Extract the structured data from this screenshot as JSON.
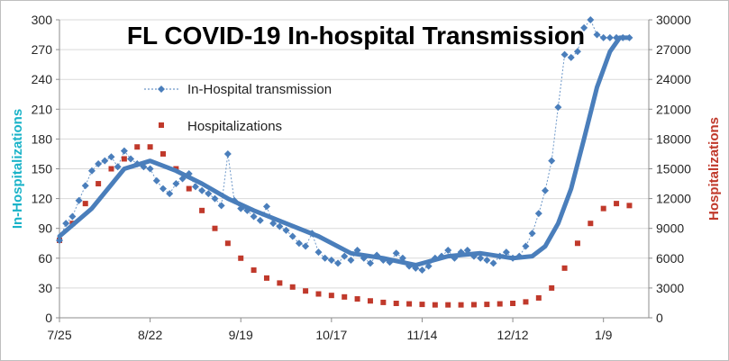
{
  "chart_data": {
    "type": "line",
    "title": "FL COVID-19 In-hospital Transmission",
    "x_tick_labels": [
      "7/25",
      "8/22",
      "9/19",
      "10/17",
      "11/14",
      "12/12",
      "1/9"
    ],
    "y_left": {
      "label": "In-Hospitalizations",
      "ticks": [
        "0",
        "30",
        "60",
        "90",
        "120",
        "150",
        "180",
        "210",
        "240",
        "270",
        "300"
      ],
      "range": [
        0,
        300
      ],
      "color": "#1ab3c8"
    },
    "y_right": {
      "label": "Hospitalizations",
      "ticks": [
        "0",
        "3000",
        "6000",
        "9000",
        "12000",
        "15000",
        "18000",
        "21000",
        "24000",
        "27000",
        "30000"
      ],
      "range": [
        0,
        30000
      ],
      "color": "#c0392b"
    },
    "legend_position": "upper-left, inside plot",
    "series": [
      {
        "name": "In-Hospital transmission",
        "axis": "left",
        "marker": "diamond",
        "color": "#4a7ebb",
        "x": [
          0,
          2,
          4,
          6,
          8,
          10,
          12,
          14,
          16,
          18,
          20,
          22,
          24,
          26,
          28,
          30,
          32,
          34,
          36,
          38,
          40,
          42,
          44,
          46,
          48,
          50,
          52,
          54,
          56,
          58,
          60,
          62,
          64,
          66,
          68,
          70,
          72,
          74,
          76,
          78,
          80,
          82,
          84,
          86,
          88,
          90,
          92,
          94,
          96,
          98,
          100,
          102,
          104,
          106,
          108,
          110,
          112,
          114,
          116,
          118,
          120,
          122,
          124,
          126,
          128,
          130,
          132,
          134,
          136,
          138,
          140,
          142,
          144,
          146,
          148,
          150,
          152,
          154,
          156,
          158,
          160,
          162,
          164,
          166,
          168,
          170,
          172,
          174,
          176
        ],
        "values": [
          78,
          95,
          102,
          118,
          133,
          148,
          155,
          158,
          162,
          152,
          168,
          160,
          155,
          152,
          150,
          138,
          130,
          125,
          135,
          140,
          145,
          132,
          128,
          125,
          120,
          113,
          165,
          118,
          110,
          108,
          102,
          98,
          112,
          95,
          92,
          88,
          82,
          75,
          72,
          85,
          66,
          60,
          58,
          55,
          62,
          58,
          68,
          60,
          55,
          63,
          58,
          56,
          65,
          60,
          52,
          50,
          48,
          52,
          60,
          62,
          68,
          60,
          66,
          68,
          62,
          60,
          58,
          55,
          62,
          66,
          60,
          62,
          72,
          85,
          105,
          128,
          158,
          212,
          265,
          262,
          268,
          292,
          300,
          285,
          282,
          282,
          282,
          282,
          282
        ],
        "trend_x": [
          0,
          10,
          20,
          28,
          36,
          44,
          52,
          60,
          70,
          80,
          90,
          100,
          110,
          120,
          130,
          140,
          146,
          150,
          154,
          158,
          162,
          166,
          170,
          173,
          176
        ],
        "trend": [
          82,
          110,
          150,
          158,
          148,
          135,
          120,
          108,
          95,
          82,
          65,
          60,
          53,
          62,
          65,
          60,
          62,
          72,
          95,
          130,
          180,
          232,
          268,
          282,
          282
        ]
      },
      {
        "name": "Hospitalizations",
        "axis": "right",
        "marker": "square",
        "color": "#c0392b",
        "x": [
          0,
          4,
          8,
          12,
          16,
          20,
          24,
          28,
          32,
          36,
          40,
          44,
          48,
          52,
          56,
          60,
          64,
          68,
          72,
          76,
          80,
          84,
          88,
          92,
          96,
          100,
          104,
          108,
          112,
          116,
          120,
          124,
          128,
          132,
          136,
          140,
          144,
          148,
          152,
          156,
          160,
          164,
          168,
          172,
          176
        ],
        "values": [
          7800,
          9500,
          11500,
          13500,
          15000,
          16000,
          17200,
          17200,
          16500,
          15000,
          13000,
          10800,
          9000,
          7500,
          6000,
          4800,
          4000,
          3500,
          3100,
          2700,
          2400,
          2250,
          2100,
          1900,
          1700,
          1550,
          1450,
          1400,
          1350,
          1300,
          1300,
          1300,
          1320,
          1350,
          1400,
          1450,
          1600,
          2000,
          3000,
          5000,
          7500,
          9500,
          11000,
          11500,
          11300
        ]
      }
    ]
  }
}
